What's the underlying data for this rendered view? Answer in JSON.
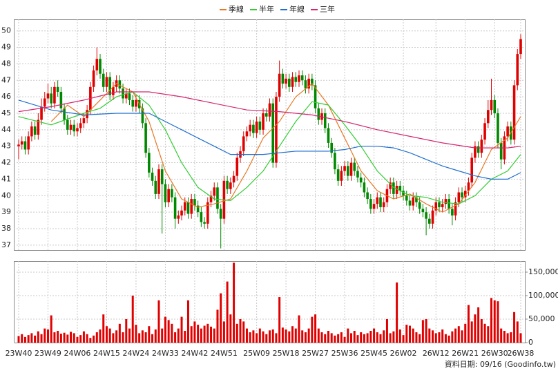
{
  "chart_data": {
    "type": "candlestick",
    "up_color": "#e00000",
    "down_color": "#008800",
    "grid": true,
    "footer": "資料日期: 09/16  (Goodinfo.tw)",
    "categories": [
      "23W40",
      null,
      null,
      null,
      null,
      null,
      null,
      null,
      null,
      "23W49",
      null,
      null,
      null,
      null,
      null,
      null,
      null,
      null,
      "24W06",
      null,
      null,
      null,
      null,
      null,
      null,
      null,
      null,
      "24W15",
      null,
      null,
      null,
      null,
      null,
      null,
      null,
      null,
      "24W24",
      null,
      null,
      null,
      null,
      null,
      null,
      null,
      null,
      "24W33",
      null,
      null,
      null,
      null,
      null,
      null,
      null,
      null,
      "24W42",
      null,
      null,
      null,
      null,
      null,
      null,
      null,
      null,
      "24W51",
      null,
      null,
      null,
      null,
      null,
      null,
      null,
      null,
      null,
      "25W09",
      null,
      null,
      null,
      null,
      null,
      null,
      null,
      null,
      "25W18",
      null,
      null,
      null,
      null,
      null,
      null,
      null,
      null,
      "25W27",
      null,
      null,
      null,
      null,
      null,
      null,
      null,
      null,
      "25W36",
      null,
      null,
      null,
      null,
      null,
      null,
      null,
      null,
      "25W45",
      null,
      null,
      null,
      null,
      null,
      null,
      null,
      null,
      "26W02",
      null,
      null,
      null,
      null,
      null,
      null,
      null,
      null,
      null,
      "26W12",
      null,
      null,
      null,
      null,
      null,
      null,
      null,
      null,
      "26W21",
      null,
      null,
      null,
      null,
      null,
      null,
      null,
      null,
      "26W30",
      null,
      null,
      null,
      null,
      null,
      null,
      null,
      "26W38"
    ],
    "ohlc": [
      [
        43.0,
        43.4,
        42.2,
        43.1
      ],
      [
        43.1,
        43.6,
        42.8,
        43.3
      ],
      [
        43.3,
        43.6,
        42.5,
        42.8
      ],
      [
        42.8,
        43.9,
        42.5,
        43.6
      ],
      [
        43.6,
        44.5,
        43.3,
        44.2
      ],
      [
        44.2,
        44.5,
        43.4,
        43.7
      ],
      [
        43.7,
        45.0,
        43.4,
        44.6
      ],
      [
        44.6,
        45.9,
        44.3,
        45.4
      ],
      [
        45.4,
        46.3,
        45.1,
        45.9
      ],
      [
        45.9,
        46.8,
        45.6,
        46.2
      ],
      [
        46.2,
        46.6,
        45.3,
        45.6
      ],
      [
        45.6,
        46.9,
        45.3,
        46.6
      ],
      [
        46.6,
        47.0,
        46.0,
        46.3
      ],
      [
        46.3,
        46.6,
        45.0,
        45.3
      ],
      [
        45.3,
        45.6,
        44.3,
        44.6
      ],
      [
        44.6,
        44.9,
        43.7,
        44.0
      ],
      [
        44.0,
        44.6,
        43.7,
        44.3
      ],
      [
        44.3,
        44.6,
        43.6,
        43.9
      ],
      [
        43.9,
        44.4,
        43.6,
        44.1
      ],
      [
        44.1,
        44.7,
        43.8,
        44.4
      ],
      [
        44.4,
        45.0,
        44.1,
        44.7
      ],
      [
        44.7,
        45.5,
        44.4,
        45.2
      ],
      [
        45.2,
        46.9,
        44.9,
        46.6
      ],
      [
        46.6,
        47.9,
        46.3,
        47.6
      ],
      [
        47.6,
        49.0,
        47.3,
        48.3
      ],
      [
        48.3,
        48.6,
        47.1,
        47.4
      ],
      [
        47.4,
        47.7,
        46.3,
        46.6
      ],
      [
        46.6,
        47.5,
        46.3,
        47.2
      ],
      [
        47.2,
        47.5,
        45.8,
        46.1
      ],
      [
        46.1,
        46.9,
        45.8,
        46.6
      ],
      [
        46.6,
        47.3,
        46.3,
        47.0
      ],
      [
        47.0,
        47.3,
        46.2,
        46.5
      ],
      [
        46.5,
        46.8,
        45.6,
        45.9
      ],
      [
        45.9,
        46.5,
        45.6,
        46.2
      ],
      [
        46.2,
        46.5,
        45.5,
        45.8
      ],
      [
        45.8,
        46.1,
        45.1,
        45.4
      ],
      [
        45.4,
        46.1,
        45.1,
        45.8
      ],
      [
        45.8,
        46.1,
        45.0,
        45.3
      ],
      [
        45.3,
        45.6,
        44.1,
        44.4
      ],
      [
        44.4,
        44.7,
        42.3,
        42.6
      ],
      [
        42.6,
        42.9,
        41.1,
        41.4
      ],
      [
        41.4,
        41.7,
        40.6,
        40.9
      ],
      [
        40.9,
        41.2,
        39.8,
        40.1
      ],
      [
        40.1,
        41.9,
        39.8,
        41.6
      ],
      [
        41.6,
        41.9,
        37.7,
        40.7
      ],
      [
        40.7,
        41.0,
        39.3,
        39.6
      ],
      [
        39.6,
        40.7,
        39.3,
        40.4
      ],
      [
        40.4,
        40.7,
        39.6,
        39.9
      ],
      [
        39.9,
        40.2,
        38.0,
        38.6
      ],
      [
        38.6,
        39.1,
        38.3,
        38.8
      ],
      [
        38.8,
        39.4,
        38.5,
        39.1
      ],
      [
        39.1,
        39.9,
        38.8,
        39.6
      ],
      [
        39.6,
        39.9,
        38.6,
        38.9
      ],
      [
        38.9,
        40.1,
        38.6,
        39.8
      ],
      [
        39.8,
        40.1,
        39.1,
        39.4
      ],
      [
        39.4,
        39.7,
        38.7,
        39.0
      ],
      [
        39.0,
        39.3,
        38.1,
        38.4
      ],
      [
        38.4,
        38.7,
        38.0,
        38.3
      ],
      [
        38.3,
        39.9,
        38.0,
        39.6
      ],
      [
        39.6,
        40.3,
        39.3,
        40.0
      ],
      [
        40.0,
        40.8,
        39.7,
        40.5
      ],
      [
        40.5,
        40.8,
        38.9,
        39.2
      ],
      [
        39.2,
        39.5,
        36.8,
        38.6
      ],
      [
        38.6,
        41.2,
        38.3,
        40.9
      ],
      [
        40.9,
        41.2,
        40.1,
        40.4
      ],
      [
        40.4,
        41.1,
        40.1,
        40.8
      ],
      [
        40.8,
        41.5,
        40.5,
        41.2
      ],
      [
        41.2,
        42.6,
        40.9,
        42.3
      ],
      [
        42.3,
        43.0,
        42.0,
        42.7
      ],
      [
        42.7,
        43.9,
        42.4,
        43.6
      ],
      [
        43.6,
        44.2,
        43.3,
        43.9
      ],
      [
        43.9,
        44.6,
        43.6,
        44.3
      ],
      [
        44.3,
        44.6,
        43.5,
        43.8
      ],
      [
        43.8,
        44.8,
        43.5,
        44.5
      ],
      [
        44.5,
        44.8,
        43.7,
        44.0
      ],
      [
        44.0,
        45.3,
        43.7,
        45.0
      ],
      [
        45.0,
        45.3,
        44.5,
        44.8
      ],
      [
        44.8,
        45.9,
        44.5,
        45.6
      ],
      [
        45.6,
        45.9,
        41.7,
        42.0
      ],
      [
        42.0,
        46.3,
        41.7,
        46.0
      ],
      [
        46.0,
        48.2,
        45.7,
        47.4
      ],
      [
        47.4,
        47.7,
        46.5,
        46.8
      ],
      [
        46.8,
        47.4,
        46.5,
        47.1
      ],
      [
        47.1,
        47.4,
        46.3,
        46.6
      ],
      [
        46.6,
        47.5,
        46.3,
        47.2
      ],
      [
        47.2,
        47.5,
        46.6,
        46.9
      ],
      [
        46.9,
        47.6,
        46.6,
        47.3
      ],
      [
        47.3,
        47.6,
        46.7,
        47.0
      ],
      [
        47.0,
        47.3,
        46.2,
        46.5
      ],
      [
        46.5,
        47.4,
        46.2,
        47.1
      ],
      [
        47.1,
        47.4,
        46.4,
        46.7
      ],
      [
        46.7,
        47.0,
        45.0,
        45.3
      ],
      [
        45.3,
        45.6,
        44.3,
        44.6
      ],
      [
        44.6,
        45.3,
        44.3,
        45.0
      ],
      [
        45.0,
        45.3,
        43.8,
        44.1
      ],
      [
        44.1,
        44.4,
        42.9,
        43.2
      ],
      [
        43.2,
        43.5,
        42.3,
        42.6
      ],
      [
        42.6,
        42.9,
        41.3,
        41.6
      ],
      [
        41.6,
        41.9,
        40.6,
        40.9
      ],
      [
        40.9,
        41.8,
        40.6,
        41.5
      ],
      [
        41.5,
        42.1,
        41.2,
        41.8
      ],
      [
        41.8,
        42.1,
        40.9,
        41.2
      ],
      [
        41.2,
        42.3,
        40.9,
        42.0
      ],
      [
        42.0,
        42.3,
        41.2,
        41.5
      ],
      [
        41.5,
        41.8,
        40.8,
        41.1
      ],
      [
        41.1,
        41.4,
        40.5,
        40.8
      ],
      [
        40.8,
        41.1,
        39.9,
        40.2
      ],
      [
        40.2,
        40.5,
        39.5,
        39.8
      ],
      [
        39.8,
        40.1,
        38.9,
        39.2
      ],
      [
        39.2,
        39.8,
        38.9,
        39.5
      ],
      [
        39.5,
        40.2,
        39.2,
        39.9
      ],
      [
        39.9,
        40.2,
        39.0,
        39.3
      ],
      [
        39.3,
        39.9,
        39.0,
        39.6
      ],
      [
        39.6,
        40.7,
        39.3,
        40.4
      ],
      [
        40.4,
        41.1,
        40.1,
        40.8
      ],
      [
        40.8,
        41.1,
        39.8,
        40.1
      ],
      [
        40.1,
        40.9,
        39.8,
        40.6
      ],
      [
        40.6,
        40.9,
        40.0,
        40.3
      ],
      [
        40.3,
        40.6,
        39.7,
        40.0
      ],
      [
        40.0,
        40.3,
        39.4,
        39.7
      ],
      [
        39.7,
        40.0,
        39.1,
        39.4
      ],
      [
        39.4,
        40.2,
        39.1,
        39.9
      ],
      [
        39.9,
        40.2,
        39.3,
        39.6
      ],
      [
        39.6,
        39.9,
        38.9,
        39.2
      ],
      [
        39.2,
        39.5,
        38.7,
        39.0
      ],
      [
        39.0,
        39.3,
        37.6,
        38.6
      ],
      [
        38.6,
        38.9,
        38.0,
        38.3
      ],
      [
        38.3,
        39.4,
        38.0,
        39.1
      ],
      [
        39.1,
        39.9,
        38.8,
        39.6
      ],
      [
        39.6,
        39.9,
        39.0,
        39.3
      ],
      [
        39.3,
        39.8,
        39.0,
        39.5
      ],
      [
        39.5,
        40.1,
        39.2,
        39.8
      ],
      [
        39.8,
        40.1,
        38.9,
        39.2
      ],
      [
        39.2,
        39.5,
        38.2,
        38.8
      ],
      [
        38.8,
        39.9,
        38.5,
        39.6
      ],
      [
        39.6,
        40.5,
        39.3,
        40.2
      ],
      [
        40.2,
        40.5,
        39.6,
        39.9
      ],
      [
        39.9,
        40.6,
        39.6,
        40.3
      ],
      [
        40.3,
        41.1,
        40.0,
        40.8
      ],
      [
        40.8,
        42.6,
        40.5,
        42.3
      ],
      [
        42.3,
        43.3,
        42.0,
        43.0
      ],
      [
        43.0,
        43.3,
        42.3,
        42.6
      ],
      [
        42.6,
        43.7,
        42.3,
        43.4
      ],
      [
        43.4,
        44.7,
        43.1,
        44.4
      ],
      [
        44.4,
        45.8,
        44.1,
        45.2
      ],
      [
        45.2,
        47.1,
        44.9,
        45.8
      ],
      [
        45.8,
        46.1,
        44.7,
        45.0
      ],
      [
        45.0,
        45.3,
        42.9,
        43.2
      ],
      [
        43.2,
        43.5,
        41.6,
        42.2
      ],
      [
        42.2,
        43.9,
        41.9,
        43.6
      ],
      [
        43.6,
        44.5,
        43.3,
        44.2
      ],
      [
        44.2,
        44.5,
        43.1,
        43.4
      ],
      [
        43.4,
        47.0,
        43.1,
        46.7
      ],
      [
        46.7,
        48.9,
        46.4,
        48.6
      ],
      [
        48.6,
        49.8,
        48.3,
        49.5
      ]
    ],
    "volume": {
      "color": "#e00000",
      "values": [
        14000,
        18000,
        12000,
        16000,
        20000,
        15000,
        24000,
        18000,
        30000,
        28000,
        58000,
        22000,
        25000,
        19000,
        21000,
        17000,
        23000,
        20000,
        12000,
        16000,
        24000,
        18000,
        10000,
        15000,
        22000,
        28000,
        60000,
        35000,
        30000,
        20000,
        26000,
        40000,
        22000,
        50000,
        30000,
        100000,
        38000,
        20000,
        26000,
        22000,
        35000,
        18000,
        28000,
        90000,
        30000,
        55000,
        48000,
        40000,
        22000,
        30000,
        55000,
        25000,
        90000,
        35000,
        45000,
        38000,
        30000,
        36000,
        40000,
        34000,
        30000,
        70000,
        105000,
        45000,
        130000,
        60000,
        170000,
        40000,
        50000,
        45000,
        30000,
        22000,
        26000,
        20000,
        30000,
        24000,
        18000,
        26000,
        28000,
        20000,
        97000,
        32000,
        28000,
        24000,
        35000,
        30000,
        58000,
        26000,
        22000,
        30000,
        55000,
        60000,
        30000,
        22000,
        18000,
        25000,
        20000,
        15000,
        18000,
        22000,
        12000,
        30000,
        20000,
        25000,
        16000,
        22000,
        18000,
        20000,
        25000,
        30000,
        22000,
        18000,
        26000,
        50000,
        20000,
        24000,
        128000,
        28000,
        16000,
        38000,
        36000,
        30000,
        22000,
        18000,
        48000,
        50000,
        30000,
        26000,
        20000,
        22000,
        28000,
        18000,
        15000,
        24000,
        30000,
        35000,
        26000,
        40000,
        80000,
        45000,
        60000,
        75000,
        50000,
        40000,
        35000,
        95000,
        90000,
        88000,
        30000,
        25000,
        20000,
        22000,
        65000,
        45000,
        20000
      ]
    },
    "series": [
      {
        "name": "季線",
        "color": "#e87722",
        "x": [
          10,
          15,
          20,
          25,
          30,
          35,
          40,
          45,
          50,
          55,
          60,
          65,
          70,
          75,
          80,
          85,
          90,
          95,
          100,
          105,
          110,
          115,
          120,
          125,
          130,
          135,
          140,
          145,
          150,
          154
        ],
        "values": [
          44.5,
          45.5,
          44.8,
          45.8,
          46.8,
          46.3,
          44.5,
          41.5,
          39.8,
          39.3,
          39.5,
          39.8,
          41.5,
          43.5,
          44.5,
          46.0,
          46.8,
          45.5,
          43.5,
          41.5,
          40.3,
          39.8,
          40.1,
          39.5,
          39.0,
          39.5,
          40.8,
          42.8,
          43.5,
          44.8
        ]
      },
      {
        "name": "半年",
        "color": "#33cc33",
        "x": [
          0,
          10,
          20,
          25,
          30,
          35,
          40,
          45,
          50,
          55,
          60,
          65,
          70,
          75,
          80,
          85,
          90,
          95,
          100,
          105,
          110,
          115,
          120,
          125,
          130,
          135,
          140,
          145,
          150,
          154
        ],
        "values": [
          44.8,
          44.3,
          45.0,
          45.3,
          46.0,
          46.3,
          45.5,
          44.0,
          42.0,
          40.5,
          39.8,
          39.7,
          40.5,
          41.5,
          43.0,
          44.5,
          45.7,
          45.5,
          44.3,
          43.0,
          41.5,
          40.5,
          40.0,
          39.9,
          39.6,
          39.5,
          40.0,
          41.0,
          41.5,
          42.5
        ]
      },
      {
        "name": "年線",
        "color": "#1f6fd0",
        "x": [
          0,
          10,
          20,
          30,
          40,
          45,
          50,
          55,
          60,
          65,
          70,
          75,
          80,
          85,
          90,
          95,
          100,
          105,
          110,
          115,
          120,
          125,
          130,
          135,
          140,
          145,
          150,
          154
        ],
        "values": [
          45.8,
          45.2,
          44.9,
          45.0,
          45.0,
          44.5,
          44.0,
          43.5,
          43.0,
          42.5,
          42.5,
          42.5,
          42.6,
          42.7,
          42.7,
          42.7,
          42.8,
          43.0,
          43.0,
          42.9,
          42.6,
          42.2,
          41.8,
          41.5,
          41.2,
          41.0,
          41.0,
          41.4
        ]
      },
      {
        "name": "三年",
        "color": "#d6246e",
        "x": [
          0,
          10,
          20,
          30,
          40,
          50,
          60,
          70,
          80,
          90,
          100,
          110,
          120,
          130,
          140,
          145,
          150,
          154
        ],
        "values": [
          45.1,
          45.4,
          45.8,
          46.3,
          46.3,
          46.0,
          45.6,
          45.2,
          45.1,
          44.9,
          44.5,
          44.0,
          43.6,
          43.2,
          42.9,
          42.9,
          42.9,
          43.0
        ]
      }
    ],
    "ylim": [
      36.7,
      50.7
    ],
    "yticks": [
      37,
      38,
      39,
      40,
      41,
      42,
      43,
      44,
      45,
      46,
      47,
      48,
      49,
      50
    ],
    "y2lim": [
      0,
      173500
    ],
    "y2ticks": [
      0,
      {
        "value": 50000,
        "label": "50,000"
      },
      {
        "value": 100000,
        "label": "100,000"
      },
      {
        "value": 150000,
        "label": "150,000"
      }
    ]
  }
}
